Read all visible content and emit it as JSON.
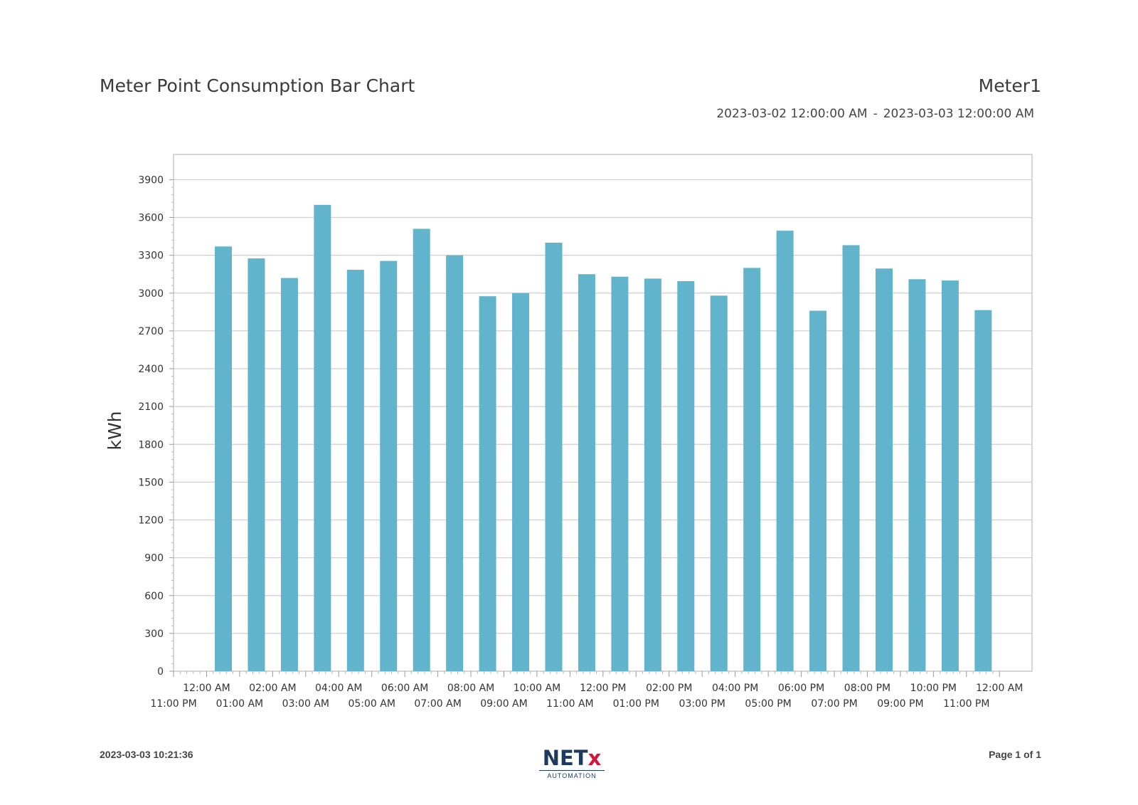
{
  "report": {
    "title": "Meter Point Consumption Bar Chart",
    "meter": "Meter1",
    "range_start": "2023-03-02 12:00:00 AM",
    "range_sep": "-",
    "range_end": "2023-03-03 12:00:00 AM"
  },
  "footer": {
    "timestamp": "2023-03-03 10:21:36",
    "page": "Page 1 of 1",
    "logo_main": "NET",
    "logo_x": "x",
    "logo_sub": "AUTOMATION"
  },
  "colors": {
    "bar": "#62b4cd",
    "grid": "#cfcfcf",
    "logo_blue": "#1d3a5c",
    "logo_red": "#d4143d"
  },
  "chart_data": {
    "type": "bar",
    "ylabel": "kWh",
    "xlabel": "",
    "ylim": [
      0,
      4100
    ],
    "yticks": [
      0,
      300,
      600,
      900,
      1200,
      1500,
      1800,
      2100,
      2400,
      2700,
      3000,
      3300,
      3600,
      3900
    ],
    "grid": true,
    "legend": "none",
    "x_tick_labels": [
      "11:00 PM",
      "12:00 AM",
      "01:00 AM",
      "02:00 AM",
      "03:00 AM",
      "04:00 AM",
      "05:00 AM",
      "06:00 AM",
      "07:00 AM",
      "08:00 AM",
      "09:00 AM",
      "10:00 AM",
      "11:00 AM",
      "12:00 PM",
      "01:00 PM",
      "02:00 PM",
      "03:00 PM",
      "04:00 PM",
      "05:00 PM",
      "06:00 PM",
      "07:00 PM",
      "08:00 PM",
      "09:00 PM",
      "10:00 PM",
      "11:00 PM",
      "12:00 AM"
    ],
    "categories": [
      "12:00 AM",
      "01:00 AM",
      "02:00 AM",
      "03:00 AM",
      "04:00 AM",
      "05:00 AM",
      "06:00 AM",
      "07:00 AM",
      "08:00 AM",
      "09:00 AM",
      "10:00 AM",
      "11:00 AM",
      "12:00 PM",
      "01:00 PM",
      "02:00 PM",
      "03:00 PM",
      "04:00 PM",
      "05:00 PM",
      "06:00 PM",
      "07:00 PM",
      "08:00 PM",
      "09:00 PM",
      "10:00 PM",
      "11:00 PM"
    ],
    "values": [
      3370,
      3275,
      3120,
      3700,
      3185,
      3255,
      3510,
      3300,
      2975,
      3000,
      3400,
      3150,
      3130,
      3115,
      3095,
      2980,
      3200,
      3495,
      2860,
      3380,
      3195,
      3110,
      3100,
      2865
    ]
  }
}
